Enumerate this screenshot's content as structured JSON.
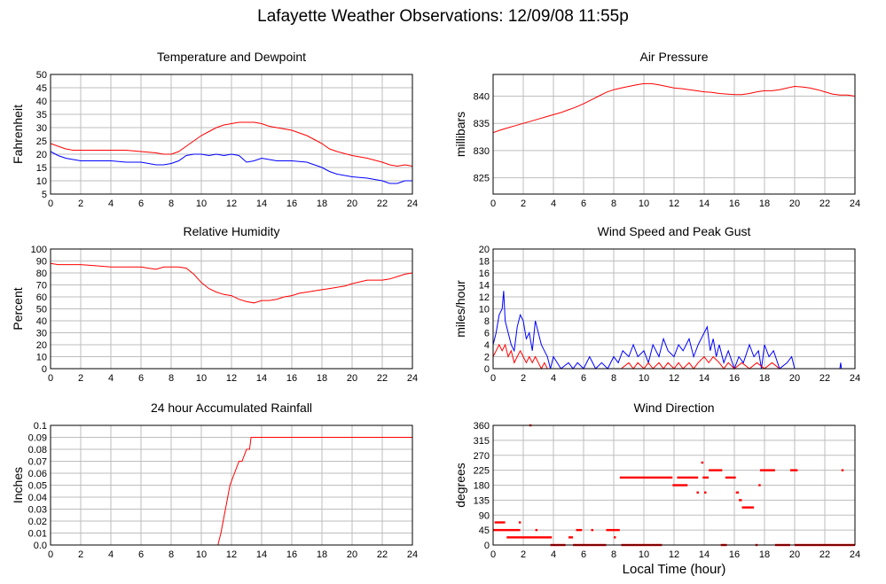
{
  "title": "Lafayette Weather Observations: 12/09/08 11:55p",
  "shared_xlabel": "Local Time (hour)",
  "colors": {
    "red": "#ff0000",
    "blue": "#0000ff",
    "grid": "#bdbdbd",
    "axis": "#000000"
  },
  "chart_data": [
    {
      "id": "temp",
      "type": "line",
      "title": "Temperature and Dewpoint",
      "xlabel": "",
      "ylabel": "Fahrenheit",
      "xlim": [
        0,
        24
      ],
      "ylim": [
        5,
        50
      ],
      "xticks": [
        0,
        2,
        4,
        6,
        8,
        10,
        12,
        14,
        16,
        18,
        20,
        22,
        24
      ],
      "yticks": [
        5,
        10,
        15,
        20,
        25,
        30,
        35,
        40,
        45,
        50
      ],
      "grid": true,
      "series": [
        {
          "color": "#ff0000",
          "x": [
            0,
            0.5,
            1,
            1.5,
            2,
            3,
            4,
            5,
            6,
            7,
            7.5,
            8,
            8.5,
            9,
            9.5,
            10,
            10.5,
            11,
            11.5,
            12,
            12.5,
            13,
            13.5,
            14,
            14.5,
            15,
            16,
            16.5,
            17,
            17.5,
            18,
            18.5,
            19,
            20,
            21,
            22,
            22.5,
            23,
            23.5,
            24
          ],
          "y": [
            24,
            23,
            22,
            21.5,
            21.5,
            21.5,
            21.5,
            21.5,
            21,
            20.5,
            20,
            20,
            21,
            23,
            25,
            27,
            28.5,
            30,
            31,
            31.5,
            32,
            32,
            32,
            31.5,
            30.5,
            30,
            29,
            28,
            27,
            25.5,
            24,
            22,
            21,
            19.5,
            18.5,
            17,
            16,
            15.5,
            16,
            15.5
          ]
        },
        {
          "color": "#0000ff",
          "x": [
            0,
            0.5,
            1,
            1.5,
            2,
            3,
            4,
            5,
            6,
            7,
            7.5,
            8,
            8.5,
            9,
            9.5,
            10,
            10.5,
            11,
            11.5,
            12,
            12.5,
            13,
            13.5,
            14,
            14.5,
            15,
            16,
            17,
            17.5,
            18,
            18.5,
            19,
            20,
            21,
            22,
            22.5,
            23,
            23.5,
            24
          ],
          "y": [
            21,
            19.5,
            18.5,
            18,
            17.5,
            17.5,
            17.5,
            17,
            17,
            16,
            16,
            16.5,
            17.5,
            19.5,
            20,
            20,
            19.5,
            20,
            19.5,
            20,
            19.5,
            17,
            17.5,
            18.5,
            18,
            17.5,
            17.5,
            17,
            16,
            15,
            13.5,
            12.5,
            11.5,
            11,
            10,
            9,
            9,
            10,
            10
          ]
        }
      ]
    },
    {
      "id": "pressure",
      "type": "line",
      "title": "Air Pressure",
      "xlabel": "",
      "ylabel": "millibars",
      "xlim": [
        0,
        24
      ],
      "ylim": [
        822,
        844
      ],
      "xticks": [
        0,
        2,
        4,
        6,
        8,
        10,
        12,
        14,
        16,
        18,
        20,
        22,
        24
      ],
      "yticks": [
        825,
        830,
        835,
        840
      ],
      "grid": true,
      "series": [
        {
          "color": "#ff0000",
          "x": [
            0,
            0.5,
            1,
            1.5,
            2,
            2.5,
            3,
            3.5,
            4,
            4.5,
            5,
            5.5,
            6,
            6.5,
            7,
            7.5,
            8,
            8.5,
            9,
            9.5,
            10,
            10.5,
            11,
            11.5,
            12,
            12.5,
            13,
            13.5,
            14,
            14.5,
            15,
            15.5,
            16,
            16.5,
            17,
            17.5,
            18,
            18.5,
            19,
            19.5,
            20,
            20.5,
            21,
            21.5,
            22,
            22.5,
            23,
            23.5,
            24
          ],
          "y": [
            833.3,
            833.8,
            834.2,
            834.6,
            835,
            835.4,
            835.8,
            836.2,
            836.6,
            837,
            837.5,
            838,
            838.6,
            839.3,
            840,
            840.7,
            841.2,
            841.5,
            841.8,
            842.1,
            842.3,
            842.3,
            842.1,
            841.8,
            841.5,
            841.4,
            841.2,
            841,
            840.8,
            840.7,
            840.5,
            840.4,
            840.3,
            840.3,
            840.5,
            840.8,
            841,
            841,
            841.2,
            841.5,
            841.8,
            841.7,
            841.5,
            841.2,
            840.8,
            840.4,
            840.2,
            840.2,
            840
          ]
        }
      ]
    },
    {
      "id": "humidity",
      "type": "line",
      "title": "Relative Humidity",
      "xlabel": "",
      "ylabel": "Percent",
      "xlim": [
        0,
        24
      ],
      "ylim": [
        0,
        100
      ],
      "xticks": [
        0,
        2,
        4,
        6,
        8,
        10,
        12,
        14,
        16,
        18,
        20,
        22,
        24
      ],
      "yticks": [
        0,
        10,
        20,
        30,
        40,
        50,
        60,
        70,
        80,
        90,
        100
      ],
      "grid": true,
      "series": [
        {
          "color": "#ff0000",
          "x": [
            0,
            0.5,
            1,
            2,
            3,
            4,
            5,
            6,
            6.5,
            7,
            7.5,
            8,
            8.5,
            9,
            9.5,
            10,
            10.5,
            11,
            11.5,
            12,
            12.5,
            13,
            13.5,
            14,
            14.5,
            15,
            15.5,
            16,
            16.5,
            17,
            17.5,
            18,
            18.5,
            19,
            19.5,
            20,
            21,
            22,
            22.5,
            23,
            23.5,
            24
          ],
          "y": [
            88,
            87,
            87,
            87,
            86,
            85,
            85,
            85,
            84,
            83,
            85,
            85,
            85,
            84,
            79,
            72,
            67,
            64,
            62,
            61,
            58,
            56,
            55,
            57,
            57,
            58,
            60,
            61,
            63,
            64,
            65,
            66,
            67,
            68,
            69,
            71,
            74,
            74,
            75,
            77,
            79,
            80
          ]
        }
      ]
    },
    {
      "id": "wind",
      "type": "line",
      "title": "Wind Speed and Peak Gust",
      "xlabel": "",
      "ylabel": "miles/hour",
      "xlim": [
        0,
        24
      ],
      "ylim": [
        0,
        20
      ],
      "xticks": [
        0,
        2,
        4,
        6,
        8,
        10,
        12,
        14,
        16,
        18,
        20,
        22,
        24
      ],
      "yticks": [
        0,
        2,
        4,
        6,
        8,
        10,
        12,
        14,
        16,
        18,
        20
      ],
      "grid": true,
      "series": [
        {
          "color": "#0000ff",
          "x": [
            0,
            0.2,
            0.4,
            0.6,
            0.7,
            0.8,
            1.0,
            1.2,
            1.4,
            1.6,
            1.8,
            2.0,
            2.2,
            2.4,
            2.6,
            2.8,
            3.0,
            3.2,
            3.4,
            3.6,
            3.8,
            4.0,
            4.5,
            5.0,
            5.3,
            5.6,
            6.0,
            6.4,
            6.8,
            7.2,
            7.6,
            8.0,
            8.3,
            8.6,
            9.0,
            9.3,
            9.6,
            10.0,
            10.3,
            10.6,
            11.0,
            11.3,
            11.6,
            12.0,
            12.3,
            12.6,
            13.0,
            13.3,
            13.6,
            14.0,
            14.2,
            14.4,
            14.6,
            14.8,
            15.0,
            15.3,
            15.6,
            16.0,
            16.3,
            16.6,
            17.0,
            17.3,
            17.6,
            17.8,
            18.0,
            18.3,
            18.6,
            19.0,
            19.5,
            19.8,
            20.0,
            20.3,
            21,
            22,
            23,
            23.05,
            23.1,
            24
          ],
          "y": [
            4,
            6,
            9,
            10,
            13,
            8,
            6,
            4,
            3,
            7,
            9,
            8,
            5,
            6,
            3,
            8,
            6,
            4,
            3,
            2,
            0,
            2,
            0,
            1,
            0,
            1,
            0,
            2,
            0,
            1,
            0,
            2,
            1,
            3,
            2,
            4,
            2,
            3,
            1,
            4,
            2,
            5,
            3,
            2,
            4,
            3,
            5,
            2,
            4,
            6,
            7,
            3,
            5,
            2,
            4,
            1,
            3,
            0,
            2,
            1,
            4,
            2,
            3,
            0,
            4,
            2,
            3,
            0,
            1,
            2,
            0,
            0,
            0,
            0,
            0,
            1,
            0,
            0
          ]
        },
        {
          "color": "#ff0000",
          "x": [
            0,
            0.2,
            0.4,
            0.6,
            0.8,
            1.0,
            1.2,
            1.4,
            1.6,
            1.8,
            2.0,
            2.2,
            2.4,
            2.6,
            2.8,
            3.0,
            3.2,
            3.4,
            3.6,
            4.0,
            8.5,
            9.0,
            9.3,
            9.6,
            10.0,
            10.3,
            10.6,
            11.0,
            11.3,
            11.6,
            12.0,
            12.3,
            12.6,
            13.0,
            13.3,
            13.6,
            14.0,
            14.3,
            14.6,
            15.0,
            15.3,
            15.6,
            16.0,
            16.5,
            17.0,
            17.5,
            18.0,
            18.5,
            19.0,
            24
          ],
          "y": [
            2,
            3,
            4,
            3,
            4,
            2,
            3,
            1,
            2,
            3,
            2,
            1,
            2,
            1,
            2,
            1,
            0,
            1,
            0,
            0,
            0,
            1,
            0,
            1,
            0,
            1,
            0,
            1,
            0,
            1,
            0,
            1,
            0,
            1,
            0,
            1,
            2,
            1,
            2,
            1,
            0,
            1,
            0,
            1,
            0,
            1,
            0,
            1,
            0,
            0
          ]
        }
      ]
    },
    {
      "id": "rain",
      "type": "line",
      "title": "24 hour Accumulated Rainfall",
      "xlabel": "",
      "ylabel": "Inches",
      "xlim": [
        0,
        24
      ],
      "ylim": [
        0,
        0.1
      ],
      "xticks": [
        0,
        2,
        4,
        6,
        8,
        10,
        12,
        14,
        16,
        18,
        20,
        22,
        24
      ],
      "yticks": [
        0.0,
        0.01,
        0.02,
        0.03,
        0.04,
        0.05,
        0.06,
        0.07,
        0.08,
        0.09,
        0.1
      ],
      "ytick_labels": [
        "0.0",
        "0.01",
        "0.02",
        "0.03",
        "0.04",
        "0.05",
        "0.06",
        "0.07",
        "0.08",
        "0.09",
        "0.1"
      ],
      "grid": true,
      "series": [
        {
          "color": "#ff0000",
          "x": [
            0,
            11.1,
            11.3,
            11.6,
            11.9,
            12.2,
            12.5,
            12.7,
            13.0,
            13.2,
            13.3,
            24
          ],
          "y": [
            0,
            0,
            0.01,
            0.03,
            0.05,
            0.06,
            0.07,
            0.07,
            0.08,
            0.08,
            0.09,
            0.09
          ]
        }
      ]
    },
    {
      "id": "direction",
      "type": "scatter",
      "title": "Wind Direction",
      "xlabel": "Local Time (hour)",
      "ylabel": "degrees",
      "xlim": [
        0,
        24
      ],
      "ylim": [
        0,
        360
      ],
      "xticks": [
        0,
        2,
        4,
        6,
        8,
        10,
        12,
        14,
        16,
        18,
        20,
        22,
        24
      ],
      "yticks": [
        0,
        45,
        90,
        135,
        180,
        225,
        270,
        315,
        360
      ],
      "grid": true,
      "segments": [
        {
          "x0": 0.0,
          "x1": 1.8,
          "y": 45
        },
        {
          "x0": 0.1,
          "x1": 0.8,
          "y": 68
        },
        {
          "x0": 0.9,
          "x1": 3.9,
          "y": 23
        },
        {
          "x0": 1.7,
          "x1": 1.8,
          "y": 68
        },
        {
          "x0": 2.4,
          "x1": 2.5,
          "y": 360
        },
        {
          "x0": 2.8,
          "x1": 2.9,
          "y": 45
        },
        {
          "x0": 3.8,
          "x1": 4.8,
          "y": 0
        },
        {
          "x0": 5.0,
          "x1": 5.3,
          "y": 23
        },
        {
          "x0": 5.5,
          "x1": 5.9,
          "y": 45
        },
        {
          "x0": 5.3,
          "x1": 7.5,
          "y": 0
        },
        {
          "x0": 6.5,
          "x1": 6.6,
          "y": 45
        },
        {
          "x0": 7.5,
          "x1": 8.4,
          "y": 45
        },
        {
          "x0": 8.0,
          "x1": 8.1,
          "y": 23
        },
        {
          "x0": 8.4,
          "x1": 11.9,
          "y": 203
        },
        {
          "x0": 8.5,
          "x1": 11.2,
          "y": 0
        },
        {
          "x0": 11.9,
          "x1": 12.9,
          "y": 180
        },
        {
          "x0": 12.2,
          "x1": 13.6,
          "y": 203
        },
        {
          "x0": 13.5,
          "x1": 13.6,
          "y": 158
        },
        {
          "x0": 13.8,
          "x1": 13.9,
          "y": 248
        },
        {
          "x0": 13.9,
          "x1": 14.3,
          "y": 203
        },
        {
          "x0": 14.0,
          "x1": 14.1,
          "y": 158
        },
        {
          "x0": 14.3,
          "x1": 15.2,
          "y": 225
        },
        {
          "x0": 15.1,
          "x1": 15.5,
          "y": 0
        },
        {
          "x0": 15.4,
          "x1": 16.1,
          "y": 203
        },
        {
          "x0": 16.1,
          "x1": 16.3,
          "y": 158
        },
        {
          "x0": 16.3,
          "x1": 16.5,
          "y": 135
        },
        {
          "x0": 16.5,
          "x1": 17.3,
          "y": 113
        },
        {
          "x0": 17.4,
          "x1": 17.5,
          "y": 0
        },
        {
          "x0": 17.6,
          "x1": 17.7,
          "y": 180
        },
        {
          "x0": 17.7,
          "x1": 18.7,
          "y": 225
        },
        {
          "x0": 18.7,
          "x1": 19.7,
          "y": 0
        },
        {
          "x0": 19.7,
          "x1": 20.2,
          "y": 225
        },
        {
          "x0": 20.0,
          "x1": 24.0,
          "y": 0
        },
        {
          "x0": 23.1,
          "x1": 23.2,
          "y": 225
        }
      ]
    }
  ]
}
